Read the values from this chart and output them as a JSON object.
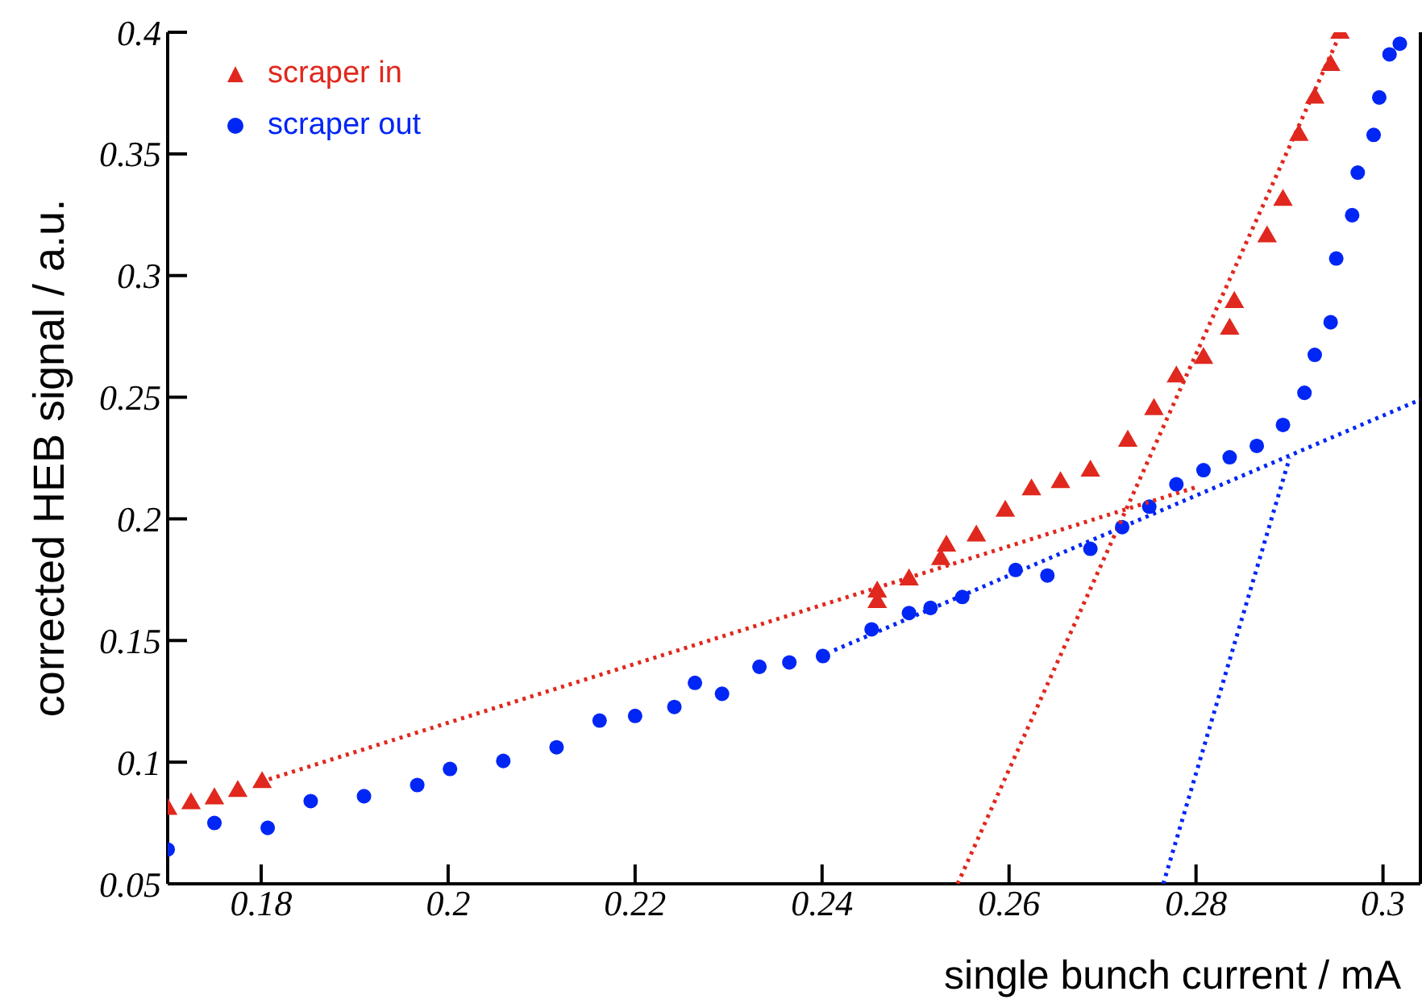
{
  "chart_data": {
    "type": "scatter",
    "xlabel": "single bunch current / mA",
    "ylabel": "corrected HEB signal / a.u.",
    "xlim": [
      0.17,
      0.304
    ],
    "ylim": [
      0.05,
      0.4
    ],
    "xticks": [
      0.18,
      0.2,
      0.22,
      0.24,
      0.26,
      0.28,
      0.3
    ],
    "yticks": [
      0.05,
      0.1,
      0.15,
      0.2,
      0.25,
      0.3,
      0.35,
      0.4
    ],
    "grid": false,
    "legend": "top left",
    "series": [
      {
        "name": "scraper in",
        "marker": "triangle",
        "color": "#e0281e",
        "x": [
          0.17,
          0.1725,
          0.175,
          0.1775,
          0.1801,
          0.2459,
          0.2459,
          0.2493,
          0.2527,
          0.2533,
          0.2565,
          0.2596,
          0.2624,
          0.2655,
          0.2687,
          0.2727,
          0.2755,
          0.2779,
          0.2808,
          0.2836,
          0.2841,
          0.2876,
          0.2893,
          0.291,
          0.2927,
          0.2944,
          0.2954
        ],
        "values": [
          0.0807,
          0.083,
          0.085,
          0.088,
          0.0917,
          0.1657,
          0.17,
          0.175,
          0.1833,
          0.1889,
          0.193,
          0.2032,
          0.212,
          0.215,
          0.2197,
          0.232,
          0.245,
          0.2584,
          0.266,
          0.278,
          0.289,
          0.316,
          0.331,
          0.3577,
          0.373,
          0.3864,
          0.3997
        ]
      },
      {
        "name": "scraper out",
        "marker": "circle",
        "color": "#0026f5",
        "x": [
          0.17,
          0.175,
          0.1807,
          0.1853,
          0.191,
          0.1967,
          0.2002,
          0.2059,
          0.2116,
          0.2162,
          0.22,
          0.2242,
          0.2264,
          0.2293,
          0.2333,
          0.2365,
          0.2401,
          0.2453,
          0.2493,
          0.2516,
          0.255,
          0.2607,
          0.2641,
          0.2687,
          0.2721,
          0.275,
          0.2779,
          0.2808,
          0.2836,
          0.2865,
          0.2893,
          0.2916,
          0.2927,
          0.2944,
          0.295,
          0.2967,
          0.2973,
          0.299,
          0.2996,
          0.3007,
          0.3018
        ],
        "values": [
          0.0641,
          0.075,
          0.073,
          0.084,
          0.086,
          0.0906,
          0.0972,
          0.1005,
          0.1061,
          0.1171,
          0.119,
          0.1227,
          0.1326,
          0.1281,
          0.1392,
          0.141,
          0.1436,
          0.1546,
          0.1613,
          0.1634,
          0.1679,
          0.179,
          0.1767,
          0.1877,
          0.1966,
          0.205,
          0.2142,
          0.22,
          0.2253,
          0.23,
          0.2386,
          0.2518,
          0.2674,
          0.2808,
          0.307,
          0.3248,
          0.3423,
          0.3578,
          0.3732,
          0.3909,
          0.3953
        ]
      },
      {
        "type": "line",
        "line_style": "dotted",
        "color": "#e0281e",
        "x": [
          0.18,
          0.28
        ],
        "values": [
          0.092,
          0.213
        ]
      },
      {
        "type": "line",
        "line_style": "dotted",
        "color": "#e0281e",
        "x": [
          0.2545,
          0.2955
        ],
        "values": [
          0.05,
          0.4
        ]
      },
      {
        "type": "line",
        "line_style": "dotted",
        "color": "#0026f5",
        "x": [
          0.2413,
          0.304
        ],
        "values": [
          0.146,
          0.249
        ]
      },
      {
        "type": "line",
        "line_style": "dotted",
        "color": "#0026f5",
        "x": [
          0.2765,
          0.29
        ],
        "values": [
          0.05,
          0.225
        ]
      }
    ]
  }
}
